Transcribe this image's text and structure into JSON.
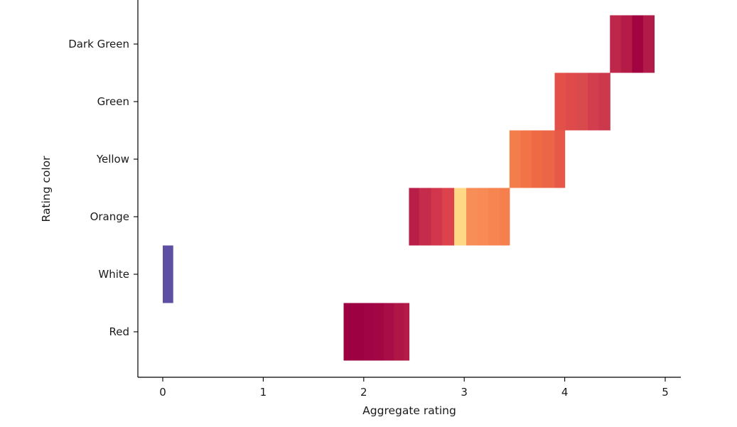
{
  "chart_data": {
    "type": "heatmap",
    "title": "",
    "xlabel": "Aggregate rating",
    "ylabel": "Rating color",
    "xlim": [
      -0.25,
      5.15
    ],
    "x_ticks": [
      "0",
      "1",
      "2",
      "3",
      "4",
      "5"
    ],
    "categories": [
      "Red",
      "White",
      "Orange",
      "Yellow",
      "Green",
      "Dark Green"
    ],
    "grid": false,
    "cells": [
      {
        "category": "Red",
        "x0": 1.8,
        "x1": 1.9,
        "color": "#9e0142"
      },
      {
        "category": "Red",
        "x0": 1.9,
        "x1": 2.0,
        "color": "#9e0142"
      },
      {
        "category": "Red",
        "x0": 2.0,
        "x1": 2.1,
        "color": "#a00444"
      },
      {
        "category": "Red",
        "x0": 2.1,
        "x1": 2.2,
        "color": "#a20643"
      },
      {
        "category": "Red",
        "x0": 2.2,
        "x1": 2.3,
        "color": "#a80d45"
      },
      {
        "category": "Red",
        "x0": 2.3,
        "x1": 2.4,
        "color": "#ae1646"
      },
      {
        "category": "Red",
        "x0": 2.4,
        "x1": 2.45,
        "color": "#b41c47"
      },
      {
        "category": "White",
        "x0": 0.0,
        "x1": 0.1,
        "color": "#5e4fa2"
      },
      {
        "category": "Orange",
        "x0": 2.45,
        "x1": 2.55,
        "color": "#b81e48"
      },
      {
        "category": "Orange",
        "x0": 2.55,
        "x1": 2.67,
        "color": "#c52b4b"
      },
      {
        "category": "Orange",
        "x0": 2.67,
        "x1": 2.78,
        "color": "#d2364c"
      },
      {
        "category": "Orange",
        "x0": 2.78,
        "x1": 2.9,
        "color": "#dc424c"
      },
      {
        "category": "Orange",
        "x0": 2.9,
        "x1": 3.02,
        "color": "#fed884"
      },
      {
        "category": "Orange",
        "x0": 3.02,
        "x1": 3.13,
        "color": "#f88e57"
      },
      {
        "category": "Orange",
        "x0": 3.13,
        "x1": 3.24,
        "color": "#f78a55"
      },
      {
        "category": "Orange",
        "x0": 3.24,
        "x1": 3.35,
        "color": "#f6854f"
      },
      {
        "category": "Orange",
        "x0": 3.35,
        "x1": 3.45,
        "color": "#f5804d"
      },
      {
        "category": "Yellow",
        "x0": 3.45,
        "x1": 3.56,
        "color": "#f47e4b"
      },
      {
        "category": "Yellow",
        "x0": 3.56,
        "x1": 3.67,
        "color": "#f27347"
      },
      {
        "category": "Yellow",
        "x0": 3.67,
        "x1": 3.78,
        "color": "#ee6a45"
      },
      {
        "category": "Yellow",
        "x0": 3.78,
        "x1": 3.9,
        "color": "#ec6546"
      },
      {
        "category": "Yellow",
        "x0": 3.9,
        "x1": 4.0,
        "color": "#e65848"
      },
      {
        "category": "Green",
        "x0": 3.9,
        "x1": 4.01,
        "color": "#e2504a"
      },
      {
        "category": "Green",
        "x0": 4.01,
        "x1": 4.12,
        "color": "#df4a4b"
      },
      {
        "category": "Green",
        "x0": 4.12,
        "x1": 4.23,
        "color": "#d84a4c"
      },
      {
        "category": "Green",
        "x0": 4.23,
        "x1": 4.34,
        "color": "#d23e4e"
      },
      {
        "category": "Green",
        "x0": 4.34,
        "x1": 4.45,
        "color": "#cc384c"
      },
      {
        "category": "Dark Green",
        "x0": 4.45,
        "x1": 4.56,
        "color": "#bd2749"
      },
      {
        "category": "Dark Green",
        "x0": 4.56,
        "x1": 4.67,
        "color": "#b41c47"
      },
      {
        "category": "Dark Green",
        "x0": 4.67,
        "x1": 4.78,
        "color": "#a20442"
      },
      {
        "category": "Dark Green",
        "x0": 4.78,
        "x1": 4.89,
        "color": "#b21a47"
      }
    ]
  }
}
